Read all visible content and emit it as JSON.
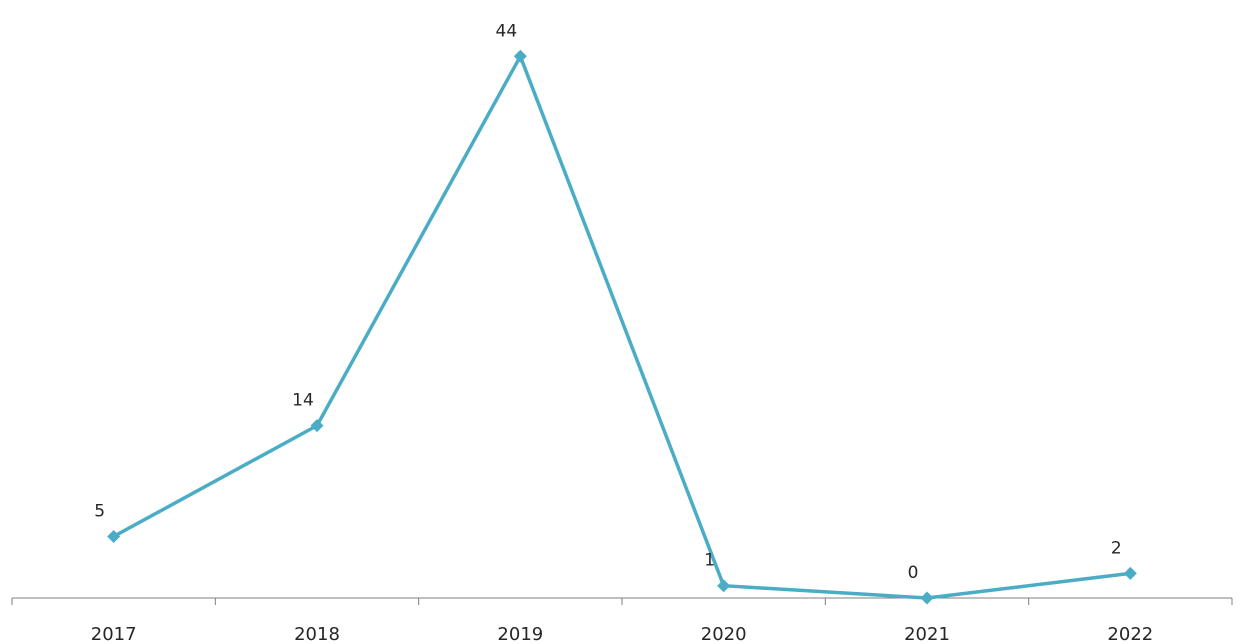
{
  "chart_data": {
    "type": "line",
    "title": "",
    "xlabel": "",
    "ylabel": "",
    "categories": [
      "2017",
      "2018",
      "2019",
      "2020",
      "2021",
      "2022"
    ],
    "series": [
      {
        "values": [
          5,
          14,
          44,
          1,
          0,
          2
        ],
        "color": "#4bacc6",
        "marker": "diamond"
      }
    ],
    "data_labels": [
      "5",
      "14",
      "44",
      "1",
      "0",
      "2"
    ],
    "ylim": [
      0,
      45
    ],
    "grid": false,
    "legend": "none",
    "y_axis_visible": false
  }
}
